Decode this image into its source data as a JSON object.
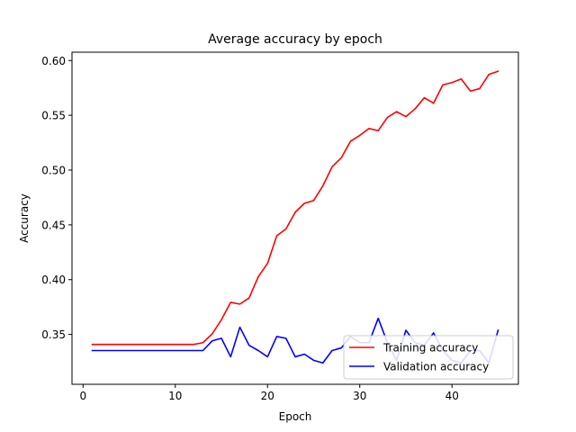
{
  "chart_data": {
    "type": "line",
    "title": "Average accuracy by epoch",
    "xlabel": "Epoch",
    "ylabel": "Accuracy",
    "xlim": [
      -1.2,
      47.2
    ],
    "ylim": [
      0.3045,
      0.6076
    ],
    "xticks": [
      0,
      10,
      20,
      30,
      40
    ],
    "yticks": [
      0.35,
      0.4,
      0.45,
      0.5,
      0.55,
      0.6
    ],
    "ytick_labels": [
      "0.35",
      "0.40",
      "0.45",
      "0.50",
      "0.55",
      "0.60"
    ],
    "grid": false,
    "legend_position": "lower-right",
    "x": [
      1,
      2,
      3,
      4,
      5,
      6,
      7,
      8,
      9,
      10,
      11,
      12,
      13,
      14,
      15,
      16,
      17,
      18,
      19,
      20,
      21,
      22,
      23,
      24,
      25,
      26,
      27,
      28,
      29,
      30,
      31,
      32,
      33,
      34,
      35,
      36,
      37,
      38,
      39,
      40,
      41,
      42,
      43,
      44,
      45
    ],
    "series": [
      {
        "name": "Training accuracy",
        "color": "#ff0000",
        "values": [
          0.3409,
          0.3409,
          0.3409,
          0.3409,
          0.3409,
          0.3409,
          0.3409,
          0.3409,
          0.3409,
          0.3409,
          0.3409,
          0.3409,
          0.3425,
          0.3505,
          0.3634,
          0.3793,
          0.3777,
          0.3833,
          0.4027,
          0.4148,
          0.44,
          0.4463,
          0.4615,
          0.4697,
          0.4722,
          0.4856,
          0.503,
          0.5112,
          0.5263,
          0.5317,
          0.538,
          0.536,
          0.5481,
          0.5533,
          0.5488,
          0.5559,
          0.5661,
          0.561,
          0.5777,
          0.5799,
          0.5832,
          0.5721,
          0.5744,
          0.5873,
          0.5902
        ]
      },
      {
        "name": "Validation accuracy",
        "color": "#0000ff",
        "values": [
          0.3353,
          0.3353,
          0.3353,
          0.3353,
          0.3353,
          0.3353,
          0.3353,
          0.3353,
          0.3353,
          0.3353,
          0.3353,
          0.3353,
          0.3353,
          0.3441,
          0.3465,
          0.3296,
          0.3566,
          0.3401,
          0.3353,
          0.3296,
          0.3481,
          0.3465,
          0.3296,
          0.332,
          0.3264,
          0.324,
          0.3353,
          0.3377,
          0.3481,
          0.3425,
          0.3425,
          0.3647,
          0.3425,
          0.3264,
          0.3538,
          0.3425,
          0.3401,
          0.3514,
          0.3353,
          0.3264,
          0.324,
          0.3353,
          0.3353,
          0.324,
          0.3538
        ]
      }
    ]
  }
}
